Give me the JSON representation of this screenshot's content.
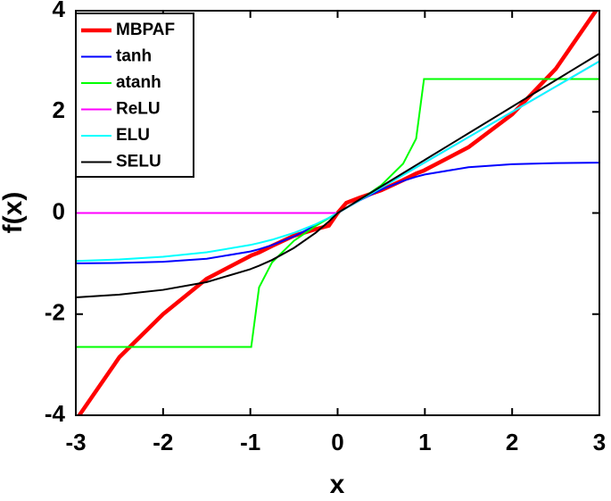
{
  "chart_data": {
    "type": "line",
    "xlabel": "x",
    "ylabel": "f(x)",
    "x": [
      -3,
      -2.5,
      -2,
      -1.5,
      -1,
      -0.99,
      -0.9,
      -0.75,
      -0.5,
      -0.25,
      -0.1,
      0,
      0.1,
      0.25,
      0.5,
      0.75,
      0.9,
      0.99,
      1,
      1.5,
      2,
      2.5,
      3
    ],
    "series": [
      {
        "name": "MBPAF",
        "color": "#ff0000",
        "values": [
          -4.1,
          -2.85,
          -2.0,
          -1.3,
          -0.85,
          -0.84,
          -0.78,
          -0.65,
          -0.45,
          -0.32,
          -0.25,
          0,
          0.2,
          0.3,
          0.45,
          0.65,
          0.78,
          0.84,
          0.85,
          1.3,
          1.95,
          2.85,
          4.1
        ]
      },
      {
        "name": "tanh",
        "color": "#0000ff",
        "values": [
          -0.995,
          -0.987,
          -0.964,
          -0.905,
          -0.762,
          -0.757,
          -0.716,
          -0.635,
          -0.462,
          -0.245,
          -0.1,
          0,
          0.1,
          0.245,
          0.462,
          0.635,
          0.716,
          0.757,
          0.762,
          0.905,
          0.964,
          0.987,
          0.995
        ]
      },
      {
        "name": "atanh",
        "color": "#00ff00",
        "values": [
          -2.65,
          -2.65,
          -2.65,
          -2.65,
          -2.65,
          -2.65,
          -1.472,
          -0.973,
          -0.549,
          -0.255,
          -0.1,
          0,
          0.1,
          0.255,
          0.549,
          0.973,
          1.472,
          2.65,
          2.65,
          2.65,
          2.65,
          2.65,
          2.65
        ]
      },
      {
        "name": "ReLU",
        "color": "#ff00ff",
        "values": [
          0,
          0,
          0,
          0,
          0,
          0,
          0,
          0,
          0,
          0,
          0,
          0,
          0.1,
          0.25,
          0.5,
          0.75,
          0.9,
          0.99,
          1,
          1.5,
          2,
          2.5,
          3
        ]
      },
      {
        "name": "ELU",
        "color": "#00ffff",
        "values": [
          -0.95,
          -0.918,
          -0.865,
          -0.777,
          -0.632,
          -0.628,
          -0.593,
          -0.528,
          -0.393,
          -0.221,
          -0.095,
          0,
          0.1,
          0.25,
          0.5,
          0.75,
          0.9,
          0.99,
          1,
          1.5,
          2,
          2.5,
          3
        ]
      },
      {
        "name": "SELU",
        "color": "#000000",
        "values": [
          -1.67,
          -1.614,
          -1.52,
          -1.366,
          -1.111,
          -1.104,
          -1.043,
          -0.928,
          -0.691,
          -0.389,
          -0.167,
          0,
          0.105,
          0.263,
          0.525,
          0.788,
          0.946,
          1.04,
          1.051,
          1.576,
          2.101,
          2.627,
          3.152
        ]
      }
    ],
    "xlim": [
      -3,
      3
    ],
    "xticks": [
      -3,
      -2,
      -1,
      0,
      1,
      2,
      3
    ],
    "ylim": [
      -4,
      4
    ],
    "yticks": [
      -4,
      -2,
      0,
      2,
      4
    ],
    "grid": false,
    "legend": "upper left"
  }
}
